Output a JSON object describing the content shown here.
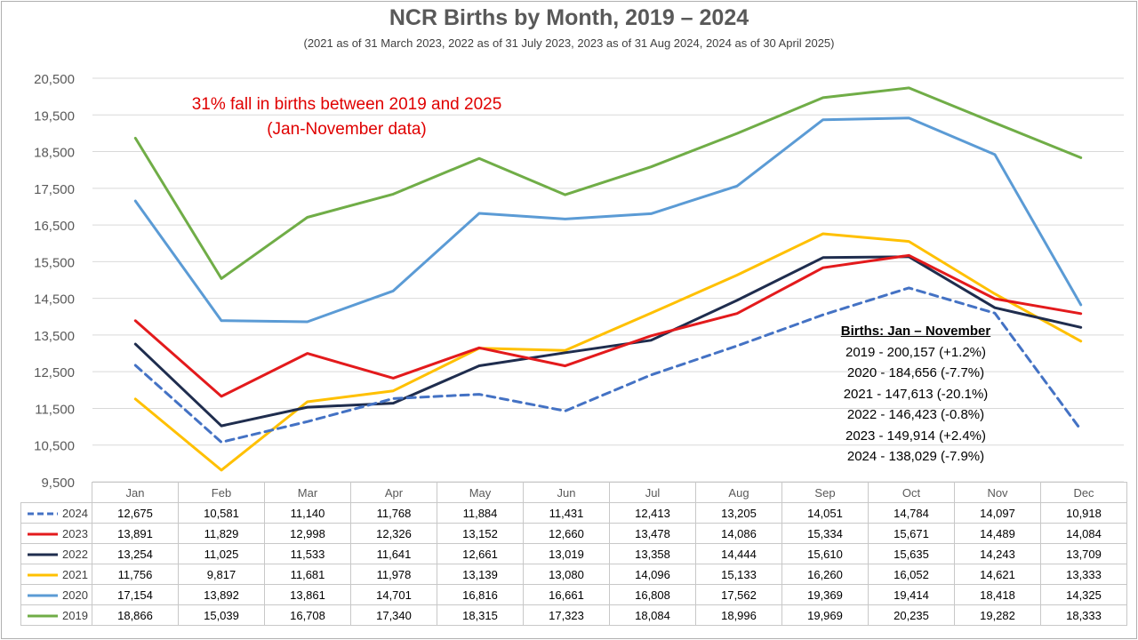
{
  "chart_data": {
    "type": "line",
    "title": "NCR Births by Month, 2019 – 2024",
    "subtitle": "(2021 as of 31 March 2023, 2022 as of 31 July 2023, 2023 as of 31 Aug 2024, 2024 as of 30 April 2025)",
    "categories": [
      "Jan",
      "Feb",
      "Mar",
      "Apr",
      "May",
      "Jun",
      "Jul",
      "Aug",
      "Sep",
      "Oct",
      "Nov",
      "Dec"
    ],
    "ylim": [
      9500,
      20500
    ],
    "yticks": [
      "9,500",
      "10,500",
      "11,500",
      "12,500",
      "13,500",
      "14,500",
      "15,500",
      "16,500",
      "17,500",
      "18,500",
      "19,500",
      "20,500"
    ],
    "yticks_values": [
      9500,
      10500,
      11500,
      12500,
      13500,
      14500,
      15500,
      16500,
      17500,
      18500,
      19500,
      20500
    ],
    "grid": true,
    "legend": "table",
    "series": [
      {
        "name": "2024",
        "color": "#4472c4",
        "dashed": true,
        "values": [
          12675,
          10581,
          11140,
          11768,
          11884,
          11431,
          12413,
          13205,
          14051,
          14784,
          14097,
          10918
        ],
        "labels": [
          "12,675",
          "10,581",
          "11,140",
          "11,768",
          "11,884",
          "11,431",
          "12,413",
          "13,205",
          "14,051",
          "14,784",
          "14,097",
          "10,918"
        ]
      },
      {
        "name": "2023",
        "color": "#e31a1c",
        "dashed": false,
        "values": [
          13891,
          11829,
          12998,
          12326,
          13152,
          12660,
          13478,
          14086,
          15334,
          15671,
          14489,
          14084
        ],
        "labels": [
          "13,891",
          "11,829",
          "12,998",
          "12,326",
          "13,152",
          "12,660",
          "13,478",
          "14,086",
          "15,334",
          "15,671",
          "14,489",
          "14,084"
        ]
      },
      {
        "name": "2022",
        "color": "#1f2d4e",
        "dashed": false,
        "values": [
          13254,
          11025,
          11533,
          11641,
          12661,
          13019,
          13358,
          14444,
          15610,
          15635,
          14243,
          13709
        ],
        "labels": [
          "13,254",
          "11,025",
          "11,533",
          "11,641",
          "12,661",
          "13,019",
          "13,358",
          "14,444",
          "15,610",
          "15,635",
          "14,243",
          "13,709"
        ]
      },
      {
        "name": "2021",
        "color": "#ffc000",
        "dashed": false,
        "values": [
          11756,
          9817,
          11681,
          11978,
          13139,
          13080,
          14096,
          15133,
          16260,
          16052,
          14621,
          13333
        ],
        "labels": [
          "11,756",
          "9,817",
          "11,681",
          "11,978",
          "13,139",
          "13,080",
          "14,096",
          "15,133",
          "16,260",
          "16,052",
          "14,621",
          "13,333"
        ]
      },
      {
        "name": "2020",
        "color": "#5b9bd5",
        "dashed": false,
        "values": [
          17154,
          13892,
          13861,
          14701,
          16816,
          16661,
          16808,
          17562,
          19369,
          19414,
          18418,
          14325
        ],
        "labels": [
          "17,154",
          "13,892",
          "13,861",
          "14,701",
          "16,816",
          "16,661",
          "16,808",
          "17,562",
          "19,369",
          "19,414",
          "18,418",
          "14,325"
        ]
      },
      {
        "name": "2019",
        "color": "#70ad47",
        "dashed": false,
        "values": [
          18866,
          15039,
          16708,
          17340,
          18315,
          17323,
          18084,
          18996,
          19969,
          20235,
          19282,
          18333
        ],
        "labels": [
          "18,866",
          "15,039",
          "16,708",
          "17,340",
          "18,315",
          "17,323",
          "18,084",
          "18,996",
          "19,969",
          "20,235",
          "19,282",
          "18,333"
        ]
      }
    ],
    "annotation": [
      "31% fall in births between 2019 and 2025",
      "(Jan-November data)"
    ],
    "summary": {
      "header": "Births: Jan – November",
      "lines": [
        "2019 - 200,157 (+1.2%)",
        "2020 - 184,656 (-7.7%)",
        "2021 - 147,613 (-20.1%)",
        "2022 - 146,423 (-0.8%)",
        "2023 - 149,914 (+2.4%)",
        "2024 - 138,029 (-7.9%)"
      ]
    }
  }
}
